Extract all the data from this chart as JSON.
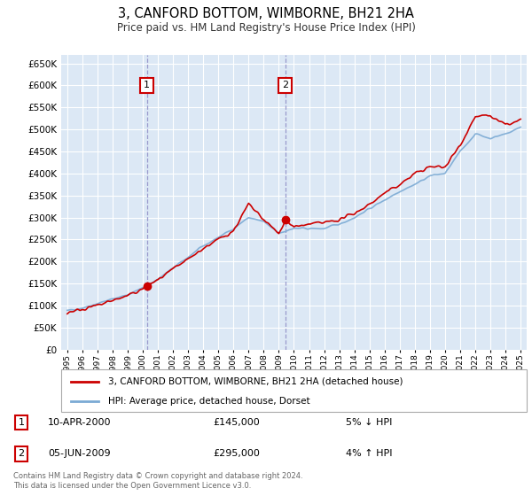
{
  "title": "3, CANFORD BOTTOM, WIMBORNE, BH21 2HA",
  "subtitle": "Price paid vs. HM Land Registry's House Price Index (HPI)",
  "ylim": [
    0,
    670000
  ],
  "yticks": [
    0,
    50000,
    100000,
    150000,
    200000,
    250000,
    300000,
    350000,
    400000,
    450000,
    500000,
    550000,
    600000,
    650000
  ],
  "x_start_year": 1995,
  "x_end_year": 2025,
  "background_color": "#ffffff",
  "plot_bg_color": "#dce8f5",
  "grid_color": "#ffffff",
  "hpi_color": "#7baad4",
  "price_color": "#cc0000",
  "marker1_year": 2000.27,
  "marker2_year": 2009.43,
  "marker1_price": 145000,
  "marker2_price": 295000,
  "legend_label_price": "3, CANFORD BOTTOM, WIMBORNE, BH21 2HA (detached house)",
  "legend_label_hpi": "HPI: Average price, detached house, Dorset",
  "table_row1": [
    "1",
    "10-APR-2000",
    "£145,000",
    "5% ↓ HPI"
  ],
  "table_row2": [
    "2",
    "05-JUN-2009",
    "£295,000",
    "4% ↑ HPI"
  ],
  "footer": "Contains HM Land Registry data © Crown copyright and database right 2024.\nThis data is licensed under the Open Government Licence v3.0."
}
